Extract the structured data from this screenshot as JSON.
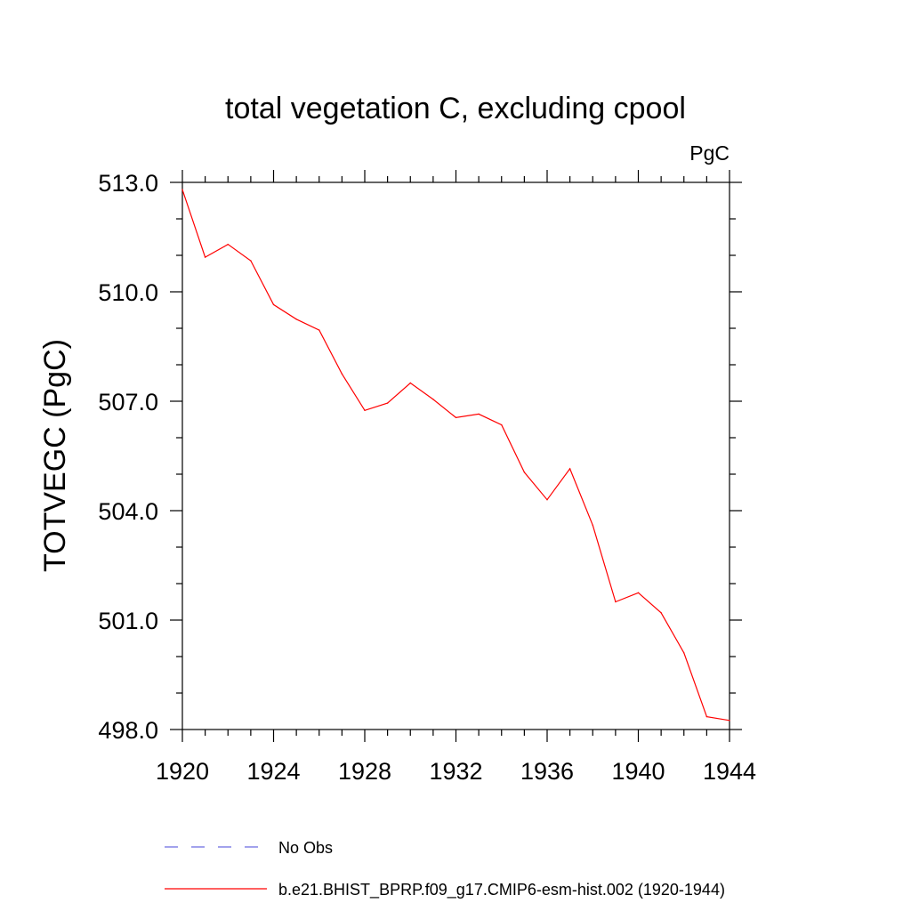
{
  "chart_data": {
    "type": "line",
    "title": "total vegetation C, excluding cpool",
    "units_label": "PgC",
    "ylabel": "TOTVEGC  (PgC)",
    "xlabel": "",
    "xlim": [
      1920,
      1944
    ],
    "ylim": [
      498.0,
      513.0
    ],
    "x_ticks": [
      "1920",
      "1924",
      "1928",
      "1932",
      "1936",
      "1940",
      "1944"
    ],
    "x_tick_values": [
      1920,
      1924,
      1928,
      1932,
      1936,
      1940,
      1944
    ],
    "y_ticks": [
      "498.0",
      "501.0",
      "504.0",
      "507.0",
      "510.0",
      "513.0"
    ],
    "y_tick_values": [
      498.0,
      501.0,
      504.0,
      507.0,
      510.0,
      513.0
    ],
    "grid": false,
    "legend_position": "bottom",
    "series": [
      {
        "name": "b.e21.BHIST_BPRP.f09_g17.CMIP6-esm-hist.002 (1920-1944)",
        "color": "#ff0000",
        "style": "solid",
        "x": [
          1920,
          1921,
          1922,
          1923,
          1924,
          1925,
          1926,
          1927,
          1928,
          1929,
          1930,
          1931,
          1932,
          1933,
          1934,
          1935,
          1936,
          1937,
          1938,
          1939,
          1940,
          1941,
          1942,
          1943,
          1944
        ],
        "y": [
          512.8,
          510.95,
          511.3,
          510.85,
          509.65,
          509.25,
          508.95,
          507.75,
          506.75,
          506.95,
          507.5,
          507.05,
          506.55,
          506.65,
          506.35,
          505.05,
          504.3,
          505.15,
          503.6,
          501.5,
          501.75,
          501.2,
          500.1,
          498.35,
          498.25
        ]
      }
    ],
    "legend": [
      {
        "label": "No Obs",
        "color": "#6a6ae0",
        "style": "dashed"
      },
      {
        "label": "b.e21.BHIST_BPRP.f09_g17.CMIP6-esm-hist.002 (1920-1944)",
        "color": "#ff0000",
        "style": "solid"
      }
    ]
  }
}
